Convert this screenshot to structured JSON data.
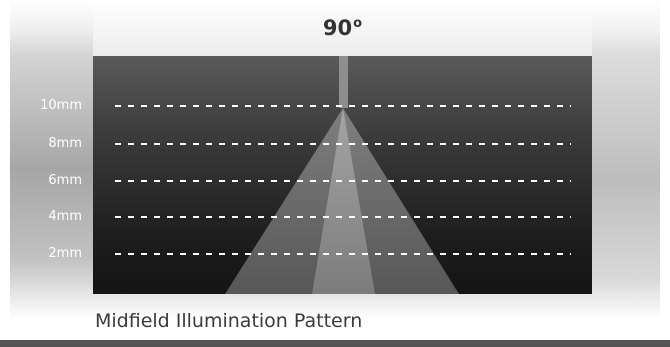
{
  "angle": {
    "value": "90",
    "unit": "o"
  },
  "scale_labels": [
    "10mm",
    "8mm",
    "6mm",
    "4mm",
    "2mm"
  ],
  "caption": "Midfield Illumination Pattern",
  "colors": {
    "panel_top": "#5a5a5a",
    "panel_bottom": "#141414",
    "beam_outer": "#6e6e6e",
    "beam_core": "#8a8a8a",
    "dash": "#ffffff",
    "caption_text": "#3a3a3a"
  }
}
